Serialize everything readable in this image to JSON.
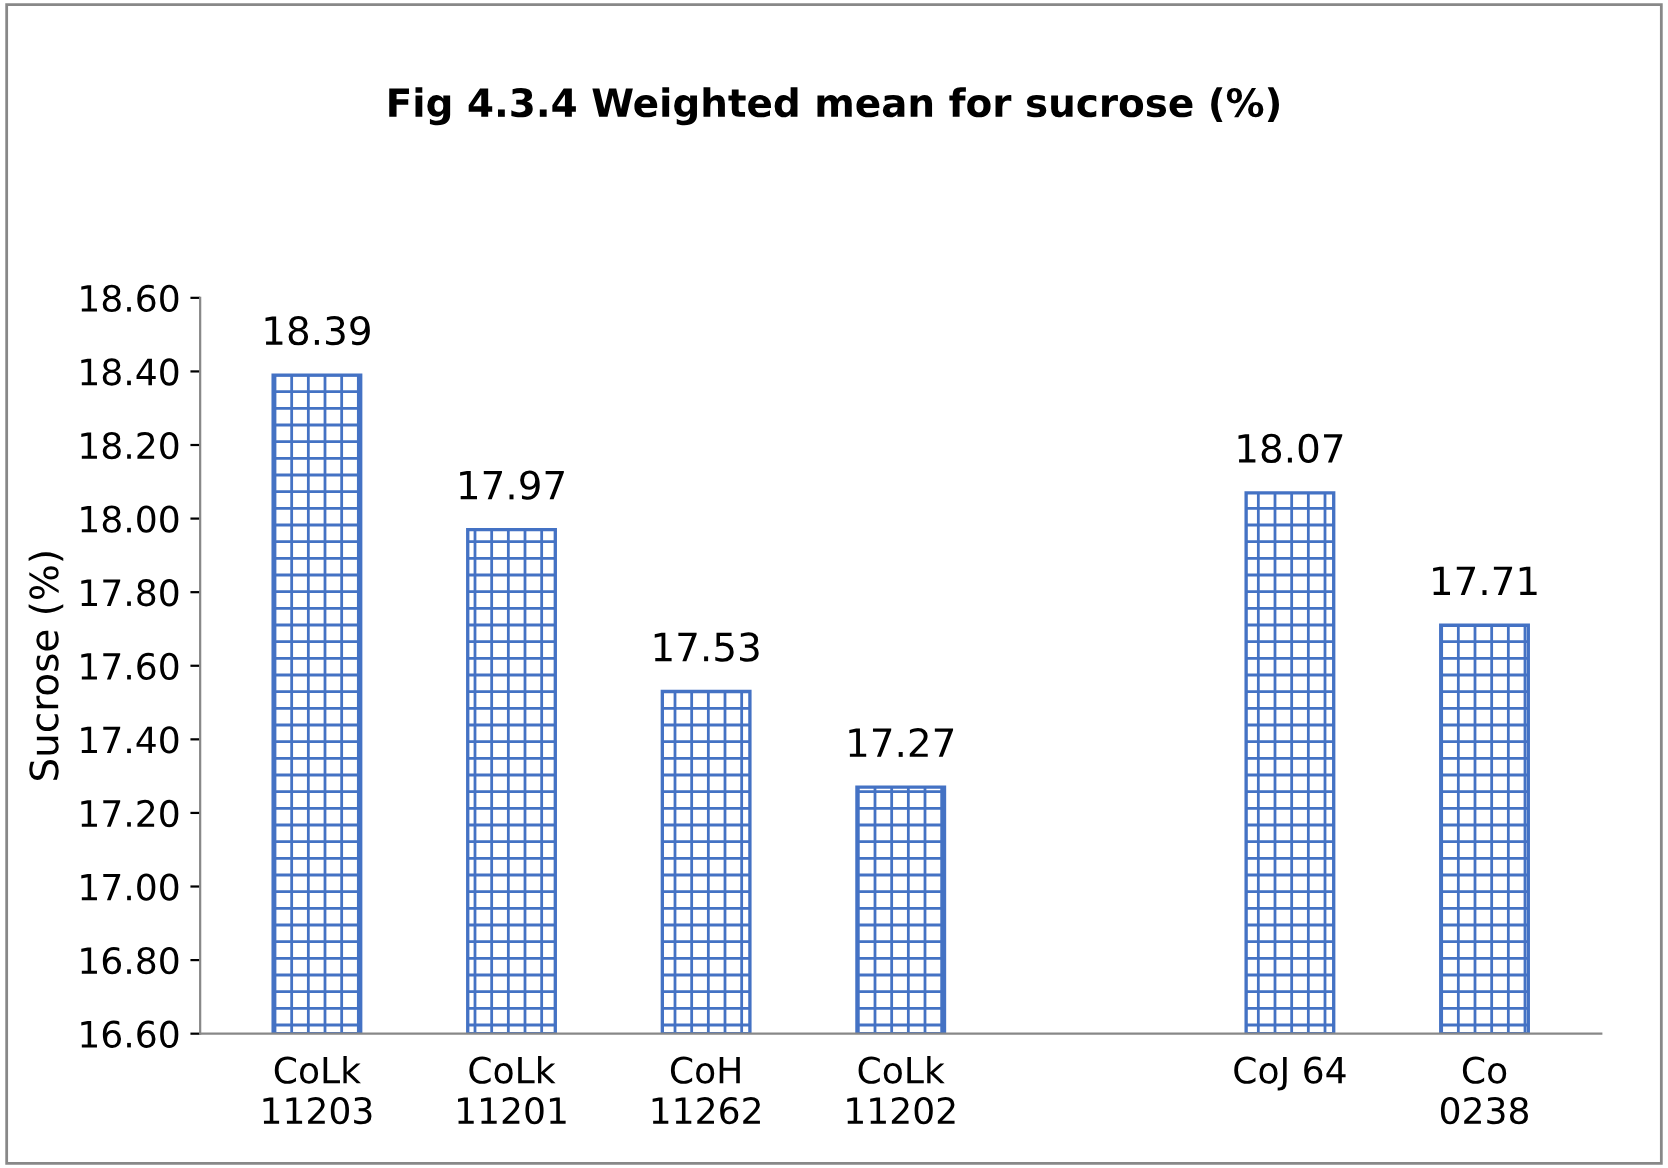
{
  "chart_data": {
    "type": "bar",
    "title": "Fig 4.3.4 Weighted mean for sucrose (%)",
    "ylabel": "Sucrose (%)",
    "categories": [
      "CoLk\n11203",
      "CoLk\n11201",
      "CoH\n11262",
      "CoLk\n11202",
      null,
      "CoJ 64",
      "Co\n0238"
    ],
    "values": [
      18.39,
      17.97,
      17.53,
      17.27,
      null,
      18.07,
      17.71
    ],
    "colors": [
      "#4472c4",
      "#4472c4",
      "#4472c4",
      "#4472c4",
      null,
      "#4472c4",
      "#4472c4"
    ],
    "ylim": [
      16.6,
      18.6
    ],
    "yticks": [
      {
        "value": 16.6,
        "label": "16.60"
      },
      {
        "value": 16.8,
        "label": "16.80"
      },
      {
        "value": 17.0,
        "label": "17.00"
      },
      {
        "value": 17.2,
        "label": "17.20"
      },
      {
        "value": 17.4,
        "label": "17.40"
      },
      {
        "value": 17.6,
        "label": "17.60"
      },
      {
        "value": 17.8,
        "label": "17.80"
      },
      {
        "value": 18.0,
        "label": "18.00"
      },
      {
        "value": 18.2,
        "label": "18.20"
      },
      {
        "value": 18.4,
        "label": "18.40"
      },
      {
        "value": 18.6,
        "label": "18.60"
      }
    ],
    "data_labels": true,
    "grid": false,
    "legend": false
  }
}
